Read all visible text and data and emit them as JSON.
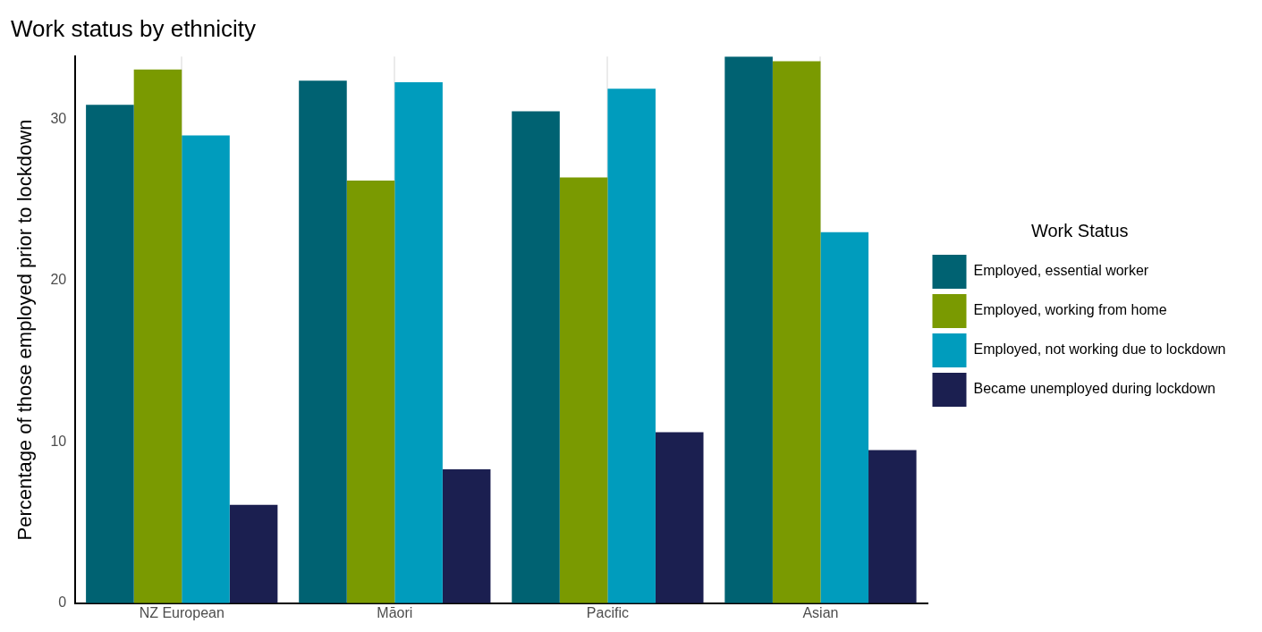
{
  "chart_data": {
    "type": "bar",
    "title": "Work status by ethnicity",
    "ylabel": "Percentage of those employed prior to lockdown",
    "legend_title": "Work Status",
    "categories": [
      "NZ European",
      "Māori",
      "Pacific",
      "Asian"
    ],
    "series": [
      {
        "name": "Employed, essential worker",
        "color": "#006272",
        "values": [
          30.9,
          32.4,
          30.5,
          33.9
        ]
      },
      {
        "name": "Employed, working from home",
        "color": "#7a9a01",
        "values": [
          33.1,
          26.2,
          26.4,
          33.6
        ]
      },
      {
        "name": "Employed, not working due to lockdown",
        "color": "#009cbd",
        "values": [
          29.0,
          32.3,
          31.9,
          23.0
        ]
      },
      {
        "name": "Became unemployed during lockdown",
        "color": "#1b1f50",
        "values": [
          6.1,
          8.3,
          10.6,
          9.5
        ]
      }
    ],
    "ylim": [
      0,
      33.9
    ],
    "yticks": [
      0,
      10,
      20,
      30
    ],
    "grid": "x",
    "legend": "right"
  }
}
